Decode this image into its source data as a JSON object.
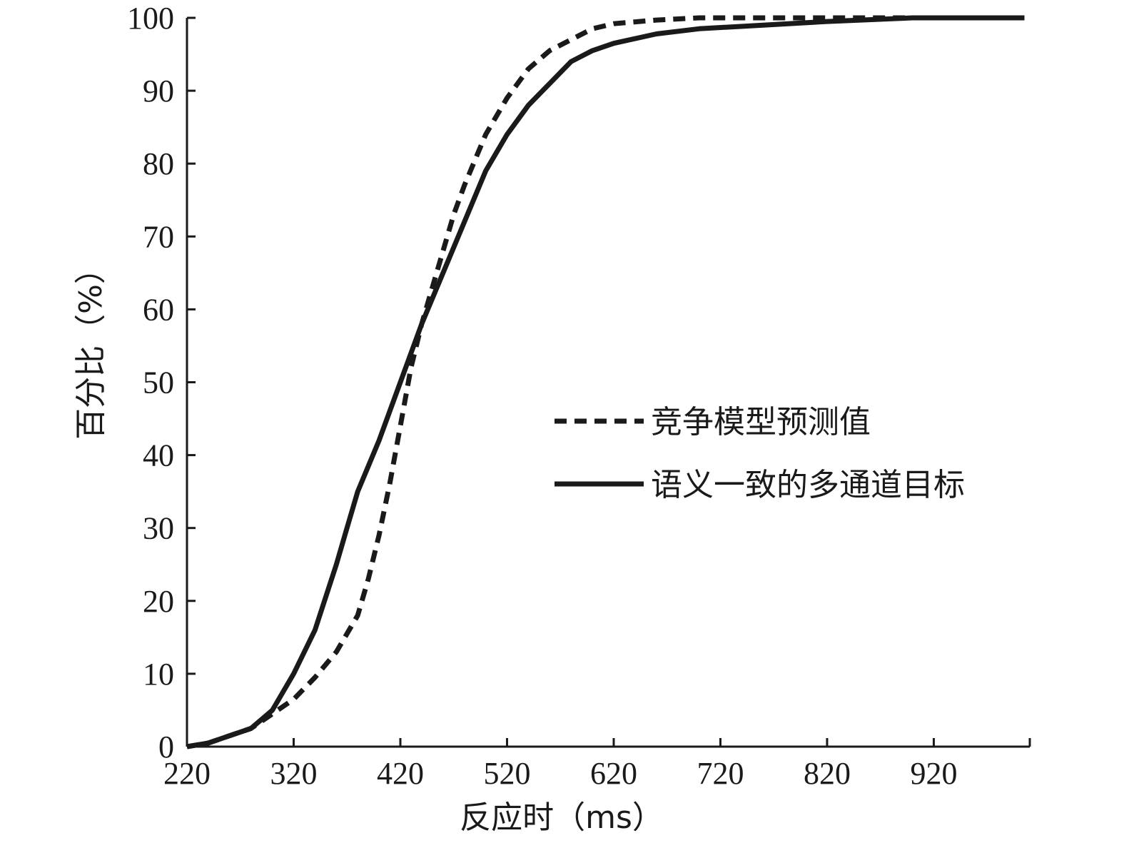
{
  "chart_data": {
    "type": "line",
    "xlabel": "反应时（ms）",
    "ylabel": "百分比（%）",
    "xlim": [
      220,
      1010
    ],
    "ylim": [
      0,
      100
    ],
    "xticks": [
      220,
      320,
      420,
      520,
      620,
      720,
      820,
      920
    ],
    "yticks": [
      0,
      10,
      20,
      30,
      40,
      50,
      60,
      70,
      80,
      90,
      100
    ],
    "grid": false,
    "legend_position": "center-right",
    "series": [
      {
        "name": "竞争模型预测值",
        "style": "dashed",
        "color": "#1a1a1a",
        "x": [
          220,
          240,
          260,
          280,
          300,
          320,
          340,
          360,
          380,
          390,
          400,
          410,
          420,
          430,
          440,
          450,
          460,
          470,
          480,
          490,
          500,
          520,
          540,
          560,
          580,
          600,
          620,
          660,
          700,
          760,
          820,
          900,
          1005
        ],
        "y": [
          0,
          0.5,
          1.5,
          2.5,
          4.5,
          6.5,
          9.5,
          13,
          18,
          23,
          29,
          36,
          44,
          52,
          58,
          63,
          68,
          73,
          77,
          80.5,
          84,
          89,
          93,
          95.5,
          97,
          98.5,
          99.2,
          99.7,
          100,
          100,
          100,
          100,
          100
        ]
      },
      {
        "name": "语义一致的多通道目标",
        "style": "solid",
        "color": "#1a1a1a",
        "x": [
          220,
          240,
          260,
          280,
          300,
          320,
          340,
          360,
          370,
          380,
          400,
          420,
          440,
          460,
          480,
          500,
          520,
          540,
          560,
          580,
          600,
          620,
          660,
          700,
          760,
          820,
          900,
          1005
        ],
        "y": [
          0,
          0.5,
          1.5,
          2.5,
          5,
          10,
          16,
          25,
          30,
          35,
          42,
          50,
          58,
          65,
          72,
          79,
          84,
          88,
          91,
          94,
          95.5,
          96.5,
          97.8,
          98.5,
          99,
          99.5,
          100,
          100
        ]
      }
    ]
  }
}
